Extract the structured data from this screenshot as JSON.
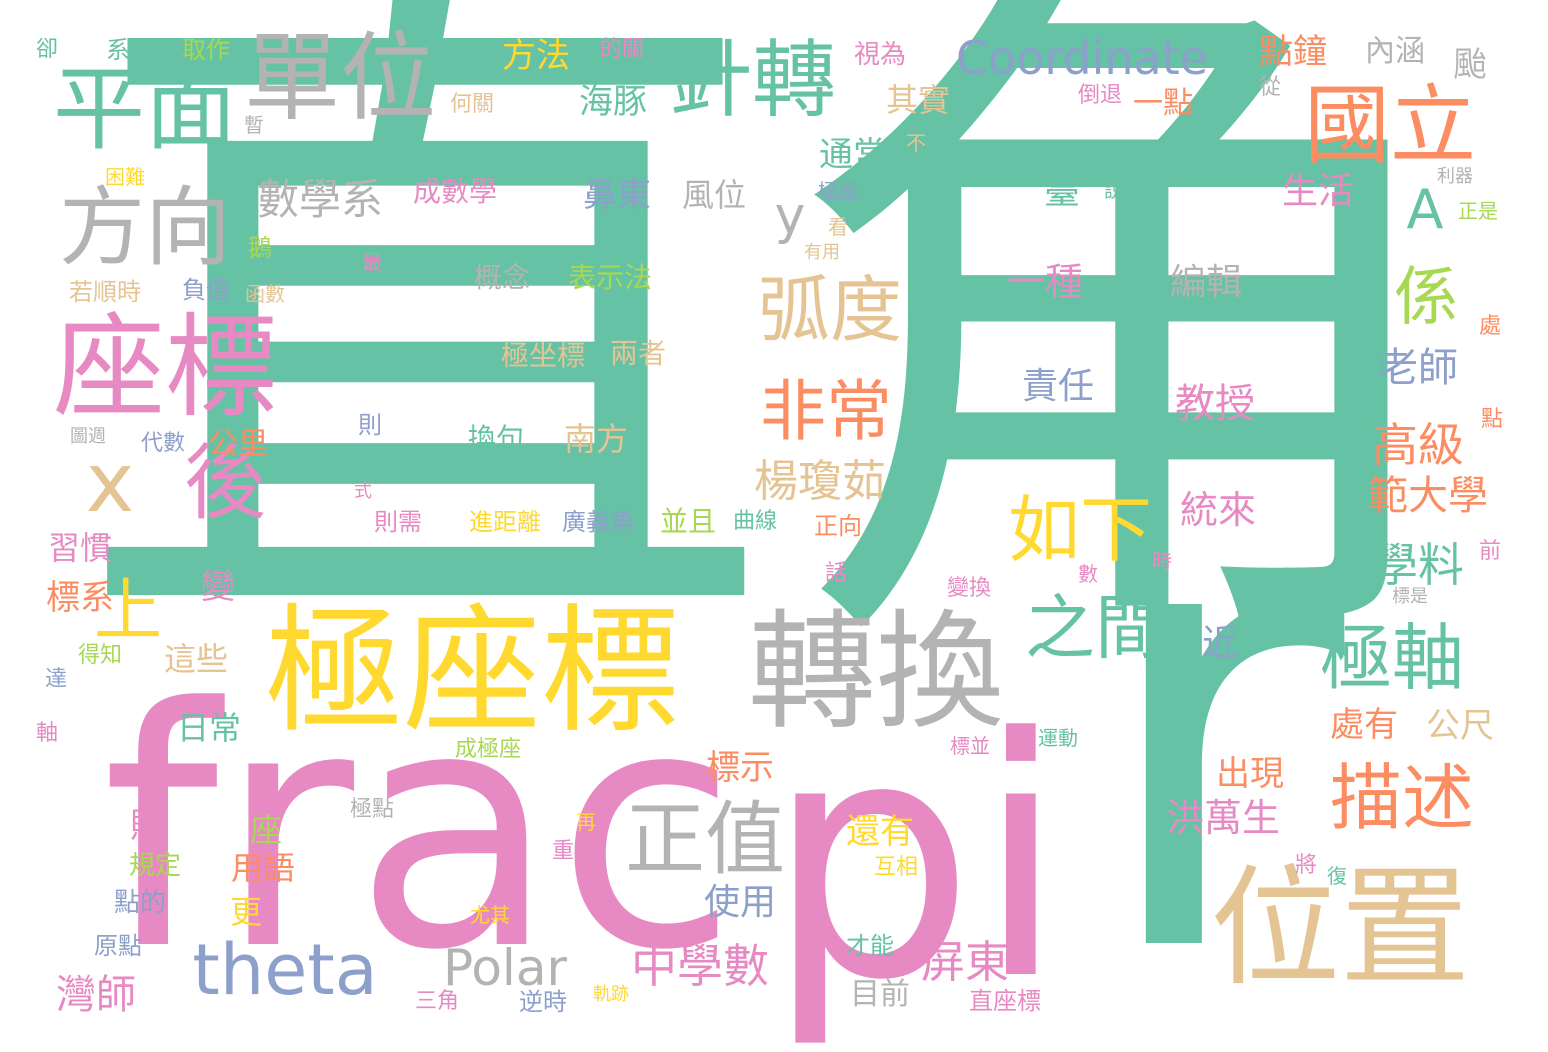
{
  "palette": {
    "teal": "#66c2a5",
    "pink": "#e78ac3",
    "yellow": "#ffd92f",
    "grey": "#b3b3b3",
    "tan": "#e5c494",
    "orange": "#fc8d62",
    "blue": "#8da0cb",
    "green": "#a6d854"
  },
  "words": [
    {
      "text": "直角",
      "color": "teal"
    },
    {
      "text": "r",
      "color": "teal"
    },
    {
      "text": "frac",
      "color": "pink"
    },
    {
      "text": "pi",
      "color": "pink"
    },
    {
      "text": "極座標",
      "color": "yellow"
    },
    {
      "text": "轉換",
      "color": "grey"
    },
    {
      "text": "位置",
      "color": "tan"
    },
    {
      "text": "座標",
      "color": "pink"
    },
    {
      "text": "單位",
      "color": "grey"
    },
    {
      "text": "平面",
      "color": "teal"
    },
    {
      "text": "方向",
      "color": "grey"
    },
    {
      "text": "針轉",
      "color": "teal"
    },
    {
      "text": "國立",
      "color": "orange"
    },
    {
      "text": "正值",
      "color": "grey"
    },
    {
      "text": "theta",
      "color": "blue"
    },
    {
      "text": "極軸",
      "color": "teal"
    },
    {
      "text": "描述",
      "color": "orange"
    },
    {
      "text": "如下",
      "color": "yellow"
    },
    {
      "text": "之間",
      "color": "teal"
    },
    {
      "text": "弧度",
      "color": "tan"
    },
    {
      "text": "非常",
      "color": "orange"
    },
    {
      "text": "Coordinate",
      "color": "blue"
    },
    {
      "text": "係",
      "color": "green"
    },
    {
      "text": "A",
      "color": "teal"
    },
    {
      "text": "x",
      "color": "tan"
    },
    {
      "text": "後",
      "color": "pink"
    },
    {
      "text": "上",
      "color": "yellow"
    },
    {
      "text": "y",
      "color": "grey"
    },
    {
      "text": "Polar",
      "color": "grey"
    },
    {
      "text": "中學數",
      "color": "pink"
    },
    {
      "text": "屏東",
      "color": "pink"
    },
    {
      "text": "數學系",
      "color": "grey"
    },
    {
      "text": "楊瓊茹",
      "color": "tan"
    },
    {
      "text": "高級",
      "color": "orange"
    },
    {
      "text": "範大學",
      "color": "orange"
    },
    {
      "text": "學料",
      "color": "teal"
    },
    {
      "text": "洪萬生",
      "color": "pink"
    },
    {
      "text": "老師",
      "color": "blue"
    },
    {
      "text": "教授",
      "color": "pink"
    },
    {
      "text": "統來",
      "color": "pink"
    },
    {
      "text": "編輯",
      "color": "grey"
    },
    {
      "text": "責任",
      "color": "blue"
    },
    {
      "text": "一種",
      "color": "pink"
    },
    {
      "text": "臺",
      "color": "teal"
    },
    {
      "text": "生活",
      "color": "pink"
    },
    {
      "text": "點鐘",
      "color": "orange"
    },
    {
      "text": "內涵",
      "color": "grey"
    },
    {
      "text": "颱",
      "color": "grey"
    },
    {
      "text": "一點",
      "color": "orange"
    },
    {
      "text": "其實",
      "color": "tan"
    },
    {
      "text": "通常",
      "color": "teal"
    },
    {
      "text": "海豚",
      "color": "teal"
    },
    {
      "text": "於",
      "color": "teal"
    },
    {
      "text": "方法",
      "color": "yellow"
    },
    {
      "text": "的關",
      "color": "pink"
    },
    {
      "text": "視為",
      "color": "pink"
    },
    {
      "text": "鼻東",
      "color": "blue"
    },
    {
      "text": "風位",
      "color": "grey"
    },
    {
      "text": "成數學",
      "color": "pink"
    },
    {
      "text": "概念",
      "color": "grey"
    },
    {
      "text": "表示法",
      "color": "green"
    },
    {
      "text": "極坐標",
      "color": "tan"
    },
    {
      "text": "兩者",
      "color": "tan"
    },
    {
      "text": "換句",
      "color": "teal"
    },
    {
      "text": "南方",
      "color": "tan"
    },
    {
      "text": "進距離",
      "color": "yellow"
    },
    {
      "text": "廣義角",
      "color": "blue"
    },
    {
      "text": "並且",
      "color": "green"
    },
    {
      "text": "曲線",
      "color": "teal"
    },
    {
      "text": "正向",
      "color": "orange"
    },
    {
      "text": "標示",
      "color": "orange"
    },
    {
      "text": "出現",
      "color": "orange"
    },
    {
      "text": "處有",
      "color": "orange"
    },
    {
      "text": "公尺",
      "color": "tan"
    },
    {
      "text": "近",
      "color": "blue"
    },
    {
      "text": "還有",
      "color": "yellow"
    },
    {
      "text": "互相",
      "color": "yellow"
    },
    {
      "text": "使用",
      "color": "blue"
    },
    {
      "text": "目前",
      "color": "grey"
    },
    {
      "text": "日常",
      "color": "teal"
    },
    {
      "text": "習慣",
      "color": "pink"
    },
    {
      "text": "標系",
      "color": "orange"
    },
    {
      "text": "變",
      "color": "pink"
    },
    {
      "text": "這些",
      "color": "tan"
    },
    {
      "text": "貼",
      "color": "pink"
    },
    {
      "text": "規定",
      "color": "green"
    },
    {
      "text": "點的",
      "color": "blue"
    },
    {
      "text": "原點",
      "color": "blue"
    },
    {
      "text": "灣師",
      "color": "pink"
    },
    {
      "text": "座",
      "color": "green"
    },
    {
      "text": "用語",
      "color": "orange"
    },
    {
      "text": "更",
      "color": "yellow"
    },
    {
      "text": "系統",
      "color": "teal"
    },
    {
      "text": "取作",
      "color": "green"
    },
    {
      "text": "卻",
      "color": "teal"
    },
    {
      "text": "何關",
      "color": "tan"
    },
    {
      "text": "倒退",
      "color": "pink"
    },
    {
      "text": "從",
      "color": "grey"
    },
    {
      "text": "暫",
      "color": "grey"
    },
    {
      "text": "困難",
      "color": "yellow"
    },
    {
      "text": "不",
      "color": "tan"
    },
    {
      "text": "極座",
      "color": "blue"
    },
    {
      "text": "說",
      "color": "teal"
    },
    {
      "text": "利器",
      "color": "grey"
    },
    {
      "text": "正是",
      "color": "green"
    },
    {
      "text": "看",
      "color": "tan"
    },
    {
      "text": "有用",
      "color": "tan"
    },
    {
      "text": "鵝",
      "color": "green"
    },
    {
      "text": "若順時",
      "color": "tan"
    },
    {
      "text": "負值",
      "color": "blue"
    },
    {
      "text": "函數",
      "color": "tan"
    },
    {
      "text": "最",
      "color": "pink"
    },
    {
      "text": "定義",
      "color": "teal"
    },
    {
      "text": "處",
      "color": "orange"
    },
    {
      "text": "點",
      "color": "orange"
    },
    {
      "text": "公里",
      "color": "orange"
    },
    {
      "text": "代數",
      "color": "blue"
    },
    {
      "text": "圖週",
      "color": "grey"
    },
    {
      "text": "則",
      "color": "blue"
    },
    {
      "text": "式",
      "color": "pink"
    },
    {
      "text": "則需",
      "color": "pink"
    },
    {
      "text": "話",
      "color": "pink"
    },
    {
      "text": "變換",
      "color": "pink"
    },
    {
      "text": "數",
      "color": "pink"
    },
    {
      "text": "時",
      "color": "pink"
    },
    {
      "text": "前",
      "color": "pink"
    },
    {
      "text": "標是",
      "color": "grey"
    },
    {
      "text": "得知",
      "color": "green"
    },
    {
      "text": "達",
      "color": "blue"
    },
    {
      "text": "軸",
      "color": "pink"
    },
    {
      "text": "成極座",
      "color": "green"
    },
    {
      "text": "標並",
      "color": "pink"
    },
    {
      "text": "運動",
      "color": "teal"
    },
    {
      "text": "極點",
      "color": "grey"
    },
    {
      "text": "再",
      "color": "yellow"
    },
    {
      "text": "重要",
      "color": "pink"
    },
    {
      "text": "將",
      "color": "pink"
    },
    {
      "text": "復",
      "color": "teal"
    },
    {
      "text": "尤其",
      "color": "yellow"
    },
    {
      "text": "才能",
      "color": "teal"
    },
    {
      "text": "三角",
      "color": "pink"
    },
    {
      "text": "逆時",
      "color": "blue"
    },
    {
      "text": "軌跡",
      "color": "yellow"
    },
    {
      "text": "直座標",
      "color": "pink"
    }
  ]
}
